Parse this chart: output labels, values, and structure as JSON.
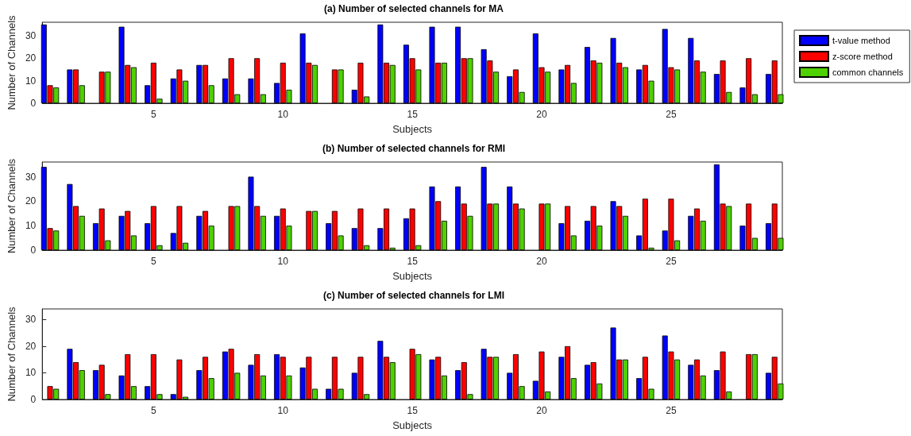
{
  "chart_data": [
    {
      "type": "bar",
      "title": "(a) Number of selected channels for MA",
      "xlabel": "Subjects",
      "ylabel": "Number of Channels",
      "legend": "right",
      "x": [
        1,
        2,
        3,
        4,
        5,
        6,
        7,
        8,
        9,
        10,
        11,
        12,
        13,
        14,
        15,
        16,
        17,
        18,
        19,
        20,
        21,
        22,
        23,
        24,
        25,
        26,
        27,
        28,
        29
      ],
      "xlim": [
        0.7,
        29.3
      ],
      "xticks": [
        5,
        10,
        15,
        20,
        25
      ],
      "ylim": [
        0,
        36
      ],
      "yticks": [
        0,
        10,
        20,
        30
      ],
      "series": [
        {
          "name": "t-value method",
          "color": "#0000ff",
          "values": [
            35,
            15,
            null,
            34,
            8,
            11,
            17,
            11,
            11,
            9,
            31,
            null,
            6,
            35,
            26,
            34,
            34,
            24,
            12,
            31,
            15,
            25,
            29,
            15,
            33,
            29,
            13,
            7,
            13
          ]
        },
        {
          "name": "z-score method",
          "color": "#ff0000",
          "values": [
            8,
            15,
            14,
            17,
            18,
            15,
            17,
            20,
            20,
            18,
            18,
            15,
            18,
            18,
            20,
            18,
            20,
            19,
            15,
            16,
            17,
            19,
            18,
            17,
            16,
            19,
            19,
            20,
            19
          ]
        },
        {
          "name": "common channels",
          "color": "#4fd100",
          "values": [
            7,
            8,
            14,
            16,
            2,
            10,
            8,
            4,
            4,
            6,
            17,
            15,
            3,
            17,
            15,
            18,
            20,
            14,
            5,
            14,
            9,
            18,
            16,
            10,
            15,
            14,
            5,
            4,
            4
          ]
        }
      ]
    },
    {
      "type": "bar",
      "title": "(b) Number of selected channels for RMI",
      "xlabel": "Subjects",
      "ylabel": "Number of Channels",
      "x": [
        1,
        2,
        3,
        4,
        5,
        6,
        7,
        8,
        9,
        10,
        11,
        12,
        13,
        14,
        15,
        16,
        17,
        18,
        19,
        20,
        21,
        22,
        23,
        24,
        25,
        26,
        27,
        28,
        29
      ],
      "xlim": [
        0.7,
        29.3
      ],
      "xticks": [
        5,
        10,
        15,
        20,
        25
      ],
      "ylim": [
        0,
        36
      ],
      "yticks": [
        0,
        10,
        20,
        30
      ],
      "series": [
        {
          "color": "#0000ff",
          "values": [
            34,
            27,
            11,
            14,
            11,
            7,
            14,
            null,
            30,
            14,
            null,
            11,
            9,
            9,
            13,
            26,
            26,
            34,
            26,
            null,
            11,
            12,
            20,
            6,
            8,
            14,
            35,
            10,
            11
          ]
        },
        {
          "color": "#ff0000",
          "values": [
            9,
            18,
            17,
            16,
            18,
            18,
            16,
            18,
            18,
            17,
            16,
            16,
            17,
            17,
            17,
            20,
            19,
            19,
            19,
            19,
            18,
            18,
            18,
            21,
            21,
            17,
            19,
            19,
            19
          ]
        },
        {
          "color": "#4fd100",
          "values": [
            8,
            14,
            4,
            6,
            2,
            3,
            10,
            18,
            14,
            10,
            16,
            6,
            2,
            1,
            2,
            12,
            14,
            19,
            17,
            19,
            6,
            10,
            14,
            1,
            4,
            12,
            18,
            5,
            5
          ]
        }
      ]
    },
    {
      "type": "bar",
      "title": "(c) Number of selected channels for LMI",
      "xlabel": "Subjects",
      "ylabel": "Number of Channels",
      "x": [
        1,
        2,
        3,
        4,
        5,
        6,
        7,
        8,
        9,
        10,
        11,
        12,
        13,
        14,
        15,
        16,
        17,
        18,
        19,
        20,
        21,
        22,
        23,
        24,
        25,
        26,
        27,
        28,
        29
      ],
      "xlim": [
        0.7,
        29.3
      ],
      "xticks": [
        5,
        10,
        15,
        20,
        25
      ],
      "ylim": [
        0,
        34
      ],
      "yticks": [
        0,
        10,
        20,
        30
      ],
      "series": [
        {
          "color": "#0000ff",
          "values": [
            null,
            19,
            11,
            9,
            5,
            2,
            11,
            18,
            13,
            17,
            12,
            4,
            10,
            22,
            null,
            15,
            11,
            19,
            10,
            7,
            16,
            13,
            27,
            8,
            24,
            13,
            11,
            null,
            10
          ]
        },
        {
          "color": "#ff0000",
          "values": [
            5,
            14,
            13,
            17,
            17,
            15,
            16,
            19,
            17,
            16,
            16,
            16,
            16,
            16,
            19,
            16,
            14,
            16,
            17,
            18,
            20,
            14,
            15,
            16,
            18,
            15,
            18,
            17,
            16
          ]
        },
        {
          "color": "#4fd100",
          "values": [
            4,
            11,
            2,
            5,
            2,
            1,
            8,
            10,
            9,
            9,
            4,
            4,
            2,
            14,
            17,
            9,
            2,
            16,
            5,
            3,
            8,
            6,
            15,
            4,
            15,
            9,
            3,
            17,
            6
          ]
        }
      ]
    }
  ]
}
